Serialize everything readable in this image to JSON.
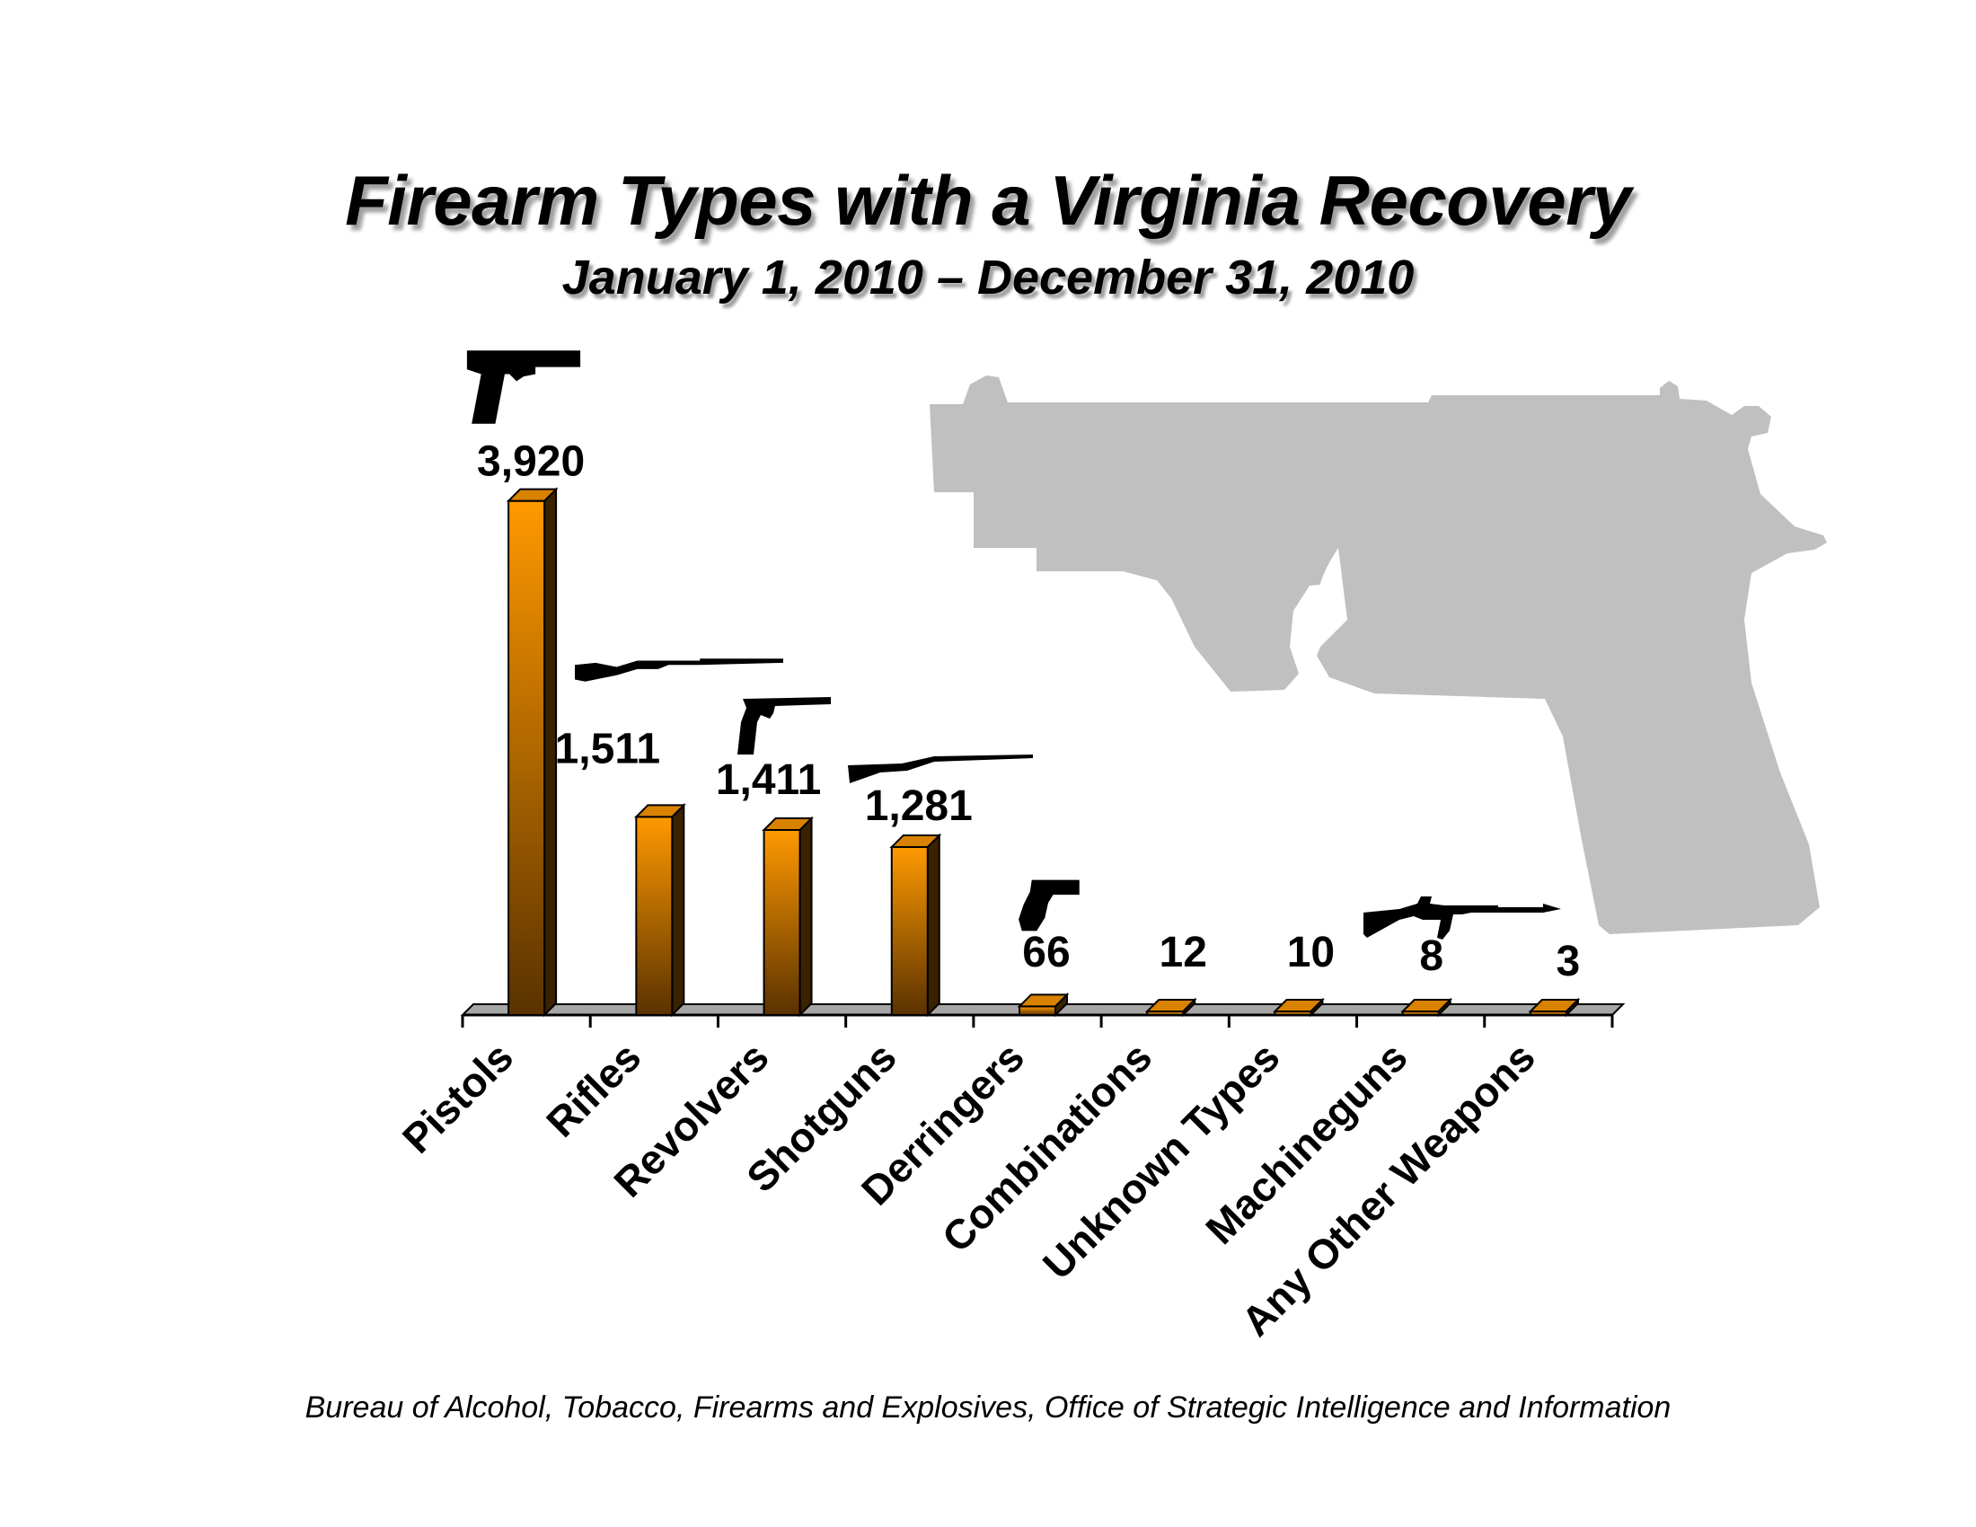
{
  "title": "Firearm Types with a Virginia Recovery",
  "subtitle": "January 1, 2010 – December 31, 2010",
  "source": "Bureau of Alcohol, Tobacco, Firearms and Explosives, Office of Strategic Intelligence and Information",
  "colors": {
    "bar_top": "#ff9900",
    "bar_bottom": "#5a3200",
    "bar_side": "#3a2200",
    "floor": "#a6a6a6",
    "watermark": "#c0c0c0"
  },
  "icons": [
    "pistol-icon",
    "rifle-icon",
    "revolver-icon",
    "shotgun-icon",
    "derringer-icon",
    "machinegun-icon",
    "pistol-watermark-icon"
  ],
  "chart_data": {
    "type": "bar",
    "title": "Firearm Types with a Virginia Recovery",
    "subtitle": "January 1, 2010 – December 31, 2010",
    "categories": [
      "Pistols",
      "Rifles",
      "Revolvers",
      "Shotguns",
      "Derringers",
      "Combinations",
      "Unknown Types",
      "Machineguns",
      "Any Other Weapons"
    ],
    "values": [
      3920,
      1511,
      1411,
      1281,
      66,
      12,
      10,
      8,
      3
    ],
    "value_labels": [
      "3,920",
      "1,511",
      "1,411",
      "1,281",
      "66",
      "12",
      "10",
      "8",
      "3"
    ],
    "ylim": [
      0,
      4000
    ],
    "grid": false,
    "legend": "none"
  }
}
